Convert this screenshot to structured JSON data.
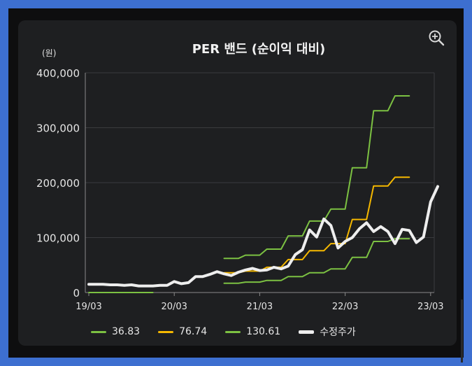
{
  "chart_data": {
    "type": "line",
    "title": "PER 밴드 (순이익 대비)",
    "ylabel": "(원)",
    "xlabel": "",
    "ylim": [
      0,
      400000
    ],
    "y_ticks": [
      0,
      100000,
      200000,
      300000,
      400000
    ],
    "y_tick_labels": [
      "0",
      "100,000",
      "200,000",
      "300,000",
      "400,000"
    ],
    "x_range": [
      0,
      48
    ],
    "x_ticks": [
      0,
      12,
      24,
      36,
      48
    ],
    "x_tick_labels": [
      "19/03",
      "20/03",
      "21/03",
      "22/03",
      "23/03"
    ],
    "grid": true,
    "series": [
      {
        "name": "36.83",
        "color": "#7cc142",
        "width": 2,
        "segments": [
          [
            [
              0,
              0
            ],
            [
              9,
              0
            ]
          ],
          [
            [
              19,
              17000
            ],
            [
              21,
              17000
            ],
            [
              22,
              19000
            ],
            [
              24,
              19000
            ],
            [
              25,
              22000
            ],
            [
              27,
              22000
            ],
            [
              28,
              29000
            ],
            [
              30,
              29000
            ],
            [
              31,
              36000
            ],
            [
              33,
              36000
            ],
            [
              34,
              43000
            ],
            [
              36,
              43000
            ],
            [
              37,
              64000
            ],
            [
              39,
              64000
            ],
            [
              40,
              93000
            ],
            [
              42,
              93000
            ],
            [
              43,
              98000
            ],
            [
              45,
              98000
            ]
          ]
        ]
      },
      {
        "name": "76.74",
        "color": "#f5b800",
        "width": 2,
        "segments": [
          [
            [
              19,
              36000
            ],
            [
              21,
              36000
            ],
            [
              22,
              39000
            ],
            [
              24,
              39000
            ],
            [
              25,
              46000
            ],
            [
              27,
              46000
            ],
            [
              28,
              60000
            ],
            [
              30,
              60000
            ],
            [
              31,
              76000
            ],
            [
              33,
              76000
            ],
            [
              34,
              89000
            ],
            [
              36,
              89000
            ],
            [
              37,
              133000
            ],
            [
              39,
              133000
            ],
            [
              40,
              194000
            ],
            [
              42,
              194000
            ],
            [
              43,
              210000
            ],
            [
              45,
              210000
            ]
          ]
        ]
      },
      {
        "name": "130.61",
        "color": "#7cc142",
        "width": 2,
        "segments": [
          [
            [
              19,
              62000
            ],
            [
              21,
              62000
            ],
            [
              22,
              68000
            ],
            [
              24,
              68000
            ],
            [
              25,
              79000
            ],
            [
              27,
              79000
            ],
            [
              28,
              103000
            ],
            [
              30,
              103000
            ],
            [
              31,
              130000
            ],
            [
              33,
              130000
            ],
            [
              34,
              152000
            ],
            [
              36,
              152000
            ],
            [
              37,
              227000
            ],
            [
              39,
              227000
            ],
            [
              40,
              331000
            ],
            [
              42,
              331000
            ],
            [
              43,
              358000
            ],
            [
              45,
              358000
            ]
          ]
        ]
      },
      {
        "name": "수정주가",
        "color": "#eeeeee",
        "width": 4,
        "segments": [
          [
            [
              0,
              15000
            ],
            [
              1,
              15000
            ],
            [
              2,
              15000
            ],
            [
              3,
              14000
            ],
            [
              4,
              14000
            ],
            [
              5,
              13000
            ],
            [
              6,
              14000
            ],
            [
              7,
              12000
            ],
            [
              8,
              12000
            ],
            [
              9,
              12000
            ],
            [
              10,
              13000
            ],
            [
              11,
              13000
            ],
            [
              12,
              20000
            ],
            [
              13,
              16000
            ],
            [
              14,
              18000
            ],
            [
              15,
              29000
            ],
            [
              16,
              29000
            ],
            [
              17,
              33000
            ],
            [
              18,
              38000
            ],
            [
              19,
              34000
            ],
            [
              20,
              31000
            ],
            [
              21,
              37000
            ],
            [
              22,
              41000
            ],
            [
              23,
              44000
            ],
            [
              24,
              40000
            ],
            [
              25,
              41000
            ],
            [
              26,
              46000
            ],
            [
              27,
              43000
            ],
            [
              28,
              48000
            ],
            [
              29,
              69000
            ],
            [
              30,
              78000
            ],
            [
              31,
              114000
            ],
            [
              32,
              101000
            ],
            [
              33,
              134000
            ],
            [
              34,
              122000
            ],
            [
              35,
              81000
            ],
            [
              36,
              93000
            ],
            [
              37,
              100000
            ],
            [
              38,
              116000
            ],
            [
              39,
              127000
            ],
            [
              40,
              111000
            ],
            [
              41,
              120000
            ],
            [
              42,
              111000
            ],
            [
              43,
              89000
            ],
            [
              44,
              115000
            ],
            [
              45,
              113000
            ],
            [
              46,
              91000
            ],
            [
              47,
              101000
            ],
            [
              48,
              165000
            ],
            [
              49,
              193000
            ]
          ]
        ]
      }
    ]
  },
  "ui": {
    "zoom_icon": "zoom-in-icon"
  }
}
